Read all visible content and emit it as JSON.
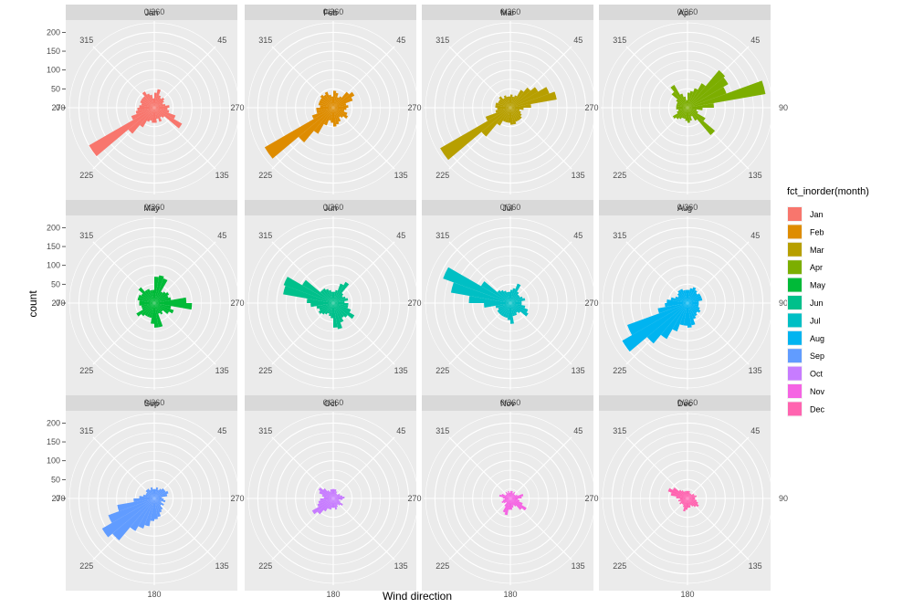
{
  "chart_data": {
    "type": "polar-histogram",
    "xlabel": "Wind direction",
    "ylabel": "count",
    "angle_ticks": [
      "0/360",
      "45",
      "90",
      "135",
      "180",
      "225",
      "270",
      "315"
    ],
    "radial_ticks": [
      0,
      50,
      100,
      150,
      200
    ],
    "ylim": [
      0,
      230
    ],
    "bin_width_deg": 10,
    "legend": {
      "title": "fct_inorder(month)",
      "placement": "right",
      "entries": [
        {
          "label": "Jan",
          "color": "#F8766D"
        },
        {
          "label": "Feb",
          "color": "#DE8C00"
        },
        {
          "label": "Mar",
          "color": "#B79F00"
        },
        {
          "label": "Apr",
          "color": "#7CAE00"
        },
        {
          "label": "May",
          "color": "#00BA38"
        },
        {
          "label": "Jun",
          "color": "#00C08B"
        },
        {
          "label": "Jul",
          "color": "#00BFC4"
        },
        {
          "label": "Aug",
          "color": "#00B4F0"
        },
        {
          "label": "Sep",
          "color": "#619CFF"
        },
        {
          "label": "Oct",
          "color": "#C77CFF"
        },
        {
          "label": "Nov",
          "color": "#F564E3"
        },
        {
          "label": "Dec",
          "color": "#FF64B0"
        }
      ]
    },
    "bin_centers_deg": [
      5,
      15,
      25,
      35,
      45,
      55,
      65,
      75,
      85,
      95,
      105,
      115,
      125,
      135,
      145,
      155,
      165,
      175,
      185,
      195,
      205,
      215,
      225,
      235,
      245,
      255,
      265,
      275,
      285,
      295,
      305,
      315,
      325,
      335,
      345,
      355
    ],
    "panels": [
      {
        "month": "Jan",
        "counts": [
          40,
          50,
          35,
          30,
          35,
          30,
          25,
          30,
          40,
          35,
          40,
          60,
          85,
          35,
          30,
          40,
          30,
          40,
          40,
          35,
          40,
          60,
          90,
          200,
          65,
          50,
          45,
          40,
          35,
          40,
          40,
          40,
          50,
          40,
          35,
          25
        ]
      },
      {
        "month": "Feb",
        "counts": [
          45,
          40,
          30,
          35,
          55,
          65,
          55,
          35,
          40,
          35,
          30,
          40,
          45,
          35,
          30,
          40,
          45,
          50,
          40,
          35,
          50,
          80,
          120,
          210,
          60,
          45,
          45,
          35,
          40,
          40,
          40,
          45,
          40,
          45,
          35,
          30
        ]
      },
      {
        "month": "Mar",
        "counts": [
          35,
          30,
          35,
          55,
          70,
          85,
          110,
          125,
          55,
          35,
          25,
          30,
          35,
          40,
          40,
          40,
          45,
          45,
          40,
          40,
          40,
          55,
          100,
          215,
          70,
          40,
          35,
          40,
          40,
          35,
          35,
          40,
          30,
          35,
          30,
          30
        ]
      },
      {
        "month": "Apr",
        "counts": [
          40,
          45,
          55,
          75,
          130,
          125,
          110,
          210,
          70,
          40,
          25,
          30,
          55,
          95,
          40,
          25,
          35,
          40,
          35,
          30,
          30,
          35,
          40,
          45,
          30,
          25,
          30,
          30,
          30,
          30,
          35,
          55,
          70,
          40,
          30,
          20
        ]
      },
      {
        "month": "May",
        "counts": [
          70,
          75,
          70,
          35,
          40,
          45,
          40,
          45,
          85,
          100,
          45,
          55,
          45,
          30,
          35,
          30,
          65,
          65,
          55,
          40,
          40,
          40,
          45,
          55,
          35,
          35,
          40,
          40,
          45,
          45,
          40,
          55,
          40,
          40,
          35,
          35
        ]
      },
      {
        "month": "Jun",
        "counts": [
          30,
          35,
          55,
          65,
          35,
          30,
          35,
          40,
          30,
          40,
          40,
          50,
          65,
          50,
          45,
          55,
          70,
          65,
          40,
          35,
          30,
          35,
          40,
          45,
          40,
          45,
          60,
          70,
          135,
          140,
          95,
          45,
          45,
          40,
          35,
          30
        ]
      },
      {
        "month": "Jul",
        "counts": [
          35,
          40,
          55,
          35,
          30,
          30,
          35,
          40,
          30,
          30,
          40,
          50,
          55,
          35,
          30,
          35,
          35,
          55,
          45,
          40,
          40,
          40,
          40,
          40,
          35,
          40,
          70,
          110,
          160,
          190,
          90,
          45,
          40,
          35,
          30,
          30
        ]
      },
      {
        "month": "Aug",
        "counts": [
          35,
          40,
          45,
          40,
          35,
          40,
          40,
          40,
          30,
          30,
          30,
          35,
          40,
          35,
          40,
          45,
          60,
          65,
          60,
          60,
          80,
          110,
          140,
          200,
          170,
          80,
          60,
          55,
          45,
          35,
          30,
          35,
          40,
          40,
          35,
          35
        ]
      },
      {
        "month": "Sep",
        "counts": [
          25,
          30,
          25,
          30,
          35,
          35,
          40,
          35,
          20,
          25,
          30,
          20,
          30,
          25,
          35,
          40,
          50,
          55,
          60,
          75,
          85,
          100,
          145,
          160,
          130,
          100,
          55,
          40,
          30,
          25,
          25,
          30,
          30,
          25,
          30,
          25
        ]
      },
      {
        "month": "Oct",
        "counts": [
          25,
          25,
          20,
          15,
          15,
          20,
          20,
          25,
          30,
          25,
          15,
          20,
          30,
          25,
          20,
          25,
          30,
          25,
          25,
          30,
          30,
          40,
          55,
          65,
          45,
          40,
          35,
          25,
          30,
          40,
          45,
          35,
          25,
          20,
          25,
          25
        ]
      },
      {
        "month": "Nov",
        "counts": [
          20,
          20,
          15,
          20,
          15,
          15,
          20,
          35,
          30,
          20,
          25,
          35,
          50,
          40,
          25,
          20,
          25,
          30,
          30,
          45,
          40,
          25,
          15,
          20,
          25,
          20,
          15,
          20,
          30,
          25,
          15,
          15,
          20,
          15,
          20,
          15
        ]
      },
      {
        "month": "Dec",
        "counts": [
          20,
          20,
          15,
          15,
          15,
          20,
          20,
          25,
          20,
          20,
          25,
          30,
          35,
          30,
          25,
          20,
          25,
          25,
          30,
          35,
          25,
          20,
          20,
          25,
          20,
          25,
          20,
          30,
          45,
          55,
          45,
          30,
          25,
          20,
          20,
          20
        ]
      }
    ]
  }
}
